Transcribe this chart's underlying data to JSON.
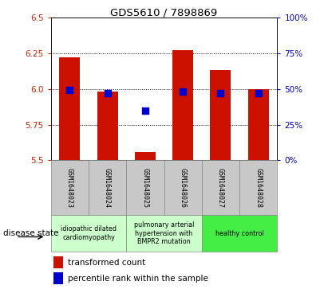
{
  "title": "GDS5610 / 7898869",
  "samples": [
    "GSM1648023",
    "GSM1648024",
    "GSM1648025",
    "GSM1648026",
    "GSM1648027",
    "GSM1648028"
  ],
  "red_values": [
    6.22,
    5.98,
    5.56,
    6.27,
    6.13,
    6.0
  ],
  "blue_values": [
    5.99,
    5.97,
    5.85,
    5.98,
    5.97,
    5.97
  ],
  "ymin": 5.5,
  "ymax": 6.5,
  "yticks_left": [
    5.5,
    5.75,
    6.0,
    6.25,
    6.5
  ],
  "yticks_right": [
    0,
    25,
    50,
    75,
    100
  ],
  "bar_color": "#cc1100",
  "dot_color": "#0000cc",
  "bar_width": 0.55,
  "legend_red": "transformed count",
  "legend_blue": "percentile rank within the sample",
  "disease_label": "disease state",
  "tick_label_color_left": "#cc2200",
  "tick_label_color_right": "#0000cc",
  "sample_box_color": "#c8c8c8",
  "group_colors": [
    "#ccffcc",
    "#ccffcc",
    "#44ee44"
  ],
  "group_labels": [
    "idiopathic dilated\ncardiomyopathy",
    "pulmonary arterial\nhypertension with\nBMPR2 mutation",
    "healthy control"
  ],
  "group_starts": [
    0,
    2,
    4
  ],
  "group_ends": [
    1,
    3,
    5
  ]
}
